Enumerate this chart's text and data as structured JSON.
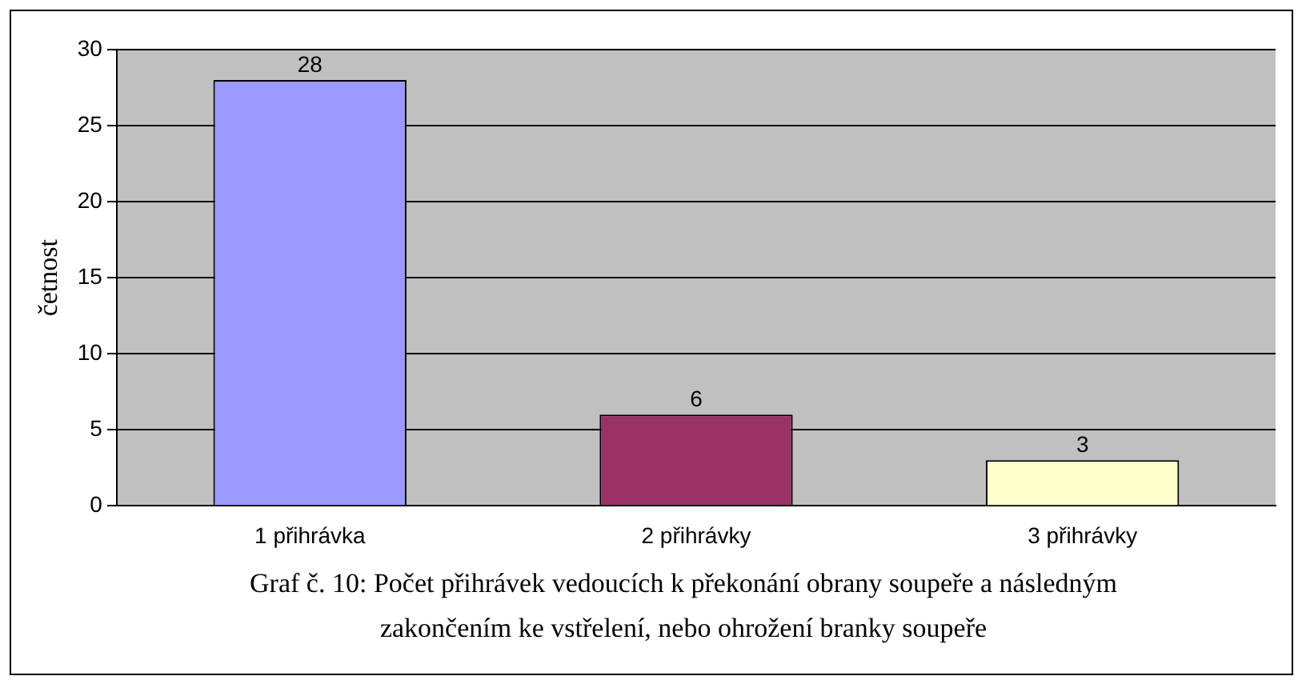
{
  "chart_data": {
    "type": "bar",
    "ylabel": "četnost",
    "categories": [
      "1 přihrávka",
      "2 přihrávky",
      "3 přihrávky"
    ],
    "values": [
      28,
      6,
      3
    ],
    "colors": [
      "#9999ff",
      "#993366",
      "#ffffcc"
    ],
    "ylim": [
      0,
      30
    ],
    "yticks": [
      0,
      5,
      10,
      15,
      20,
      25,
      30
    ],
    "grid": "y",
    "data_labels": true,
    "annotations": [
      "Graf č. 10: Počet přihrávek vedoucích k překonání obrany soupeře a následným zakončením ke vstřelení, nebo ohrožení branky soupeře"
    ]
  }
}
